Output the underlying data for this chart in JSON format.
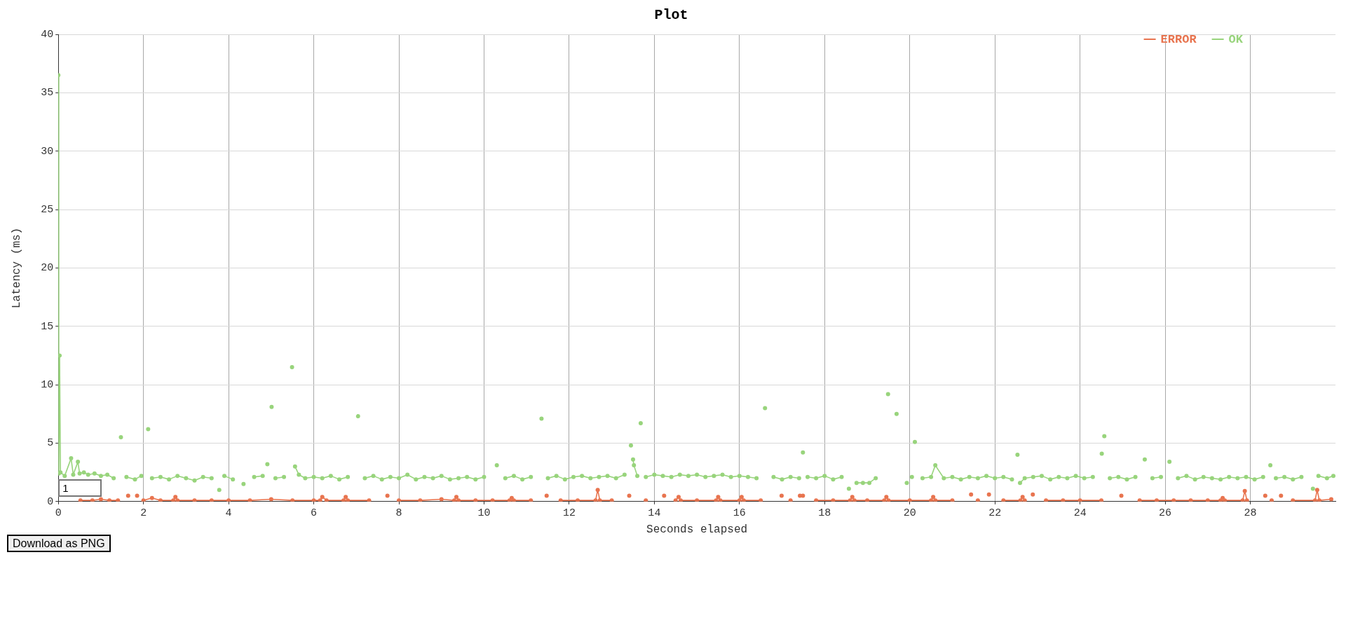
{
  "chart_data": {
    "type": "line",
    "title": "Plot",
    "xlabel": "Seconds elapsed",
    "ylabel": "Latency (ms)",
    "xlim": [
      0,
      30
    ],
    "xticks": [
      0,
      2,
      4,
      6,
      8,
      10,
      12,
      14,
      16,
      18,
      20,
      22,
      24,
      26,
      28
    ],
    "ylim": [
      0,
      40
    ],
    "yticks": [
      0,
      5,
      10,
      15,
      20,
      25,
      30,
      35,
      40
    ],
    "grid": true,
    "legend": "top right",
    "marker": "circle",
    "annotations": [
      "1",
      "Download as PNG"
    ],
    "series": [
      {
        "name": "ERROR",
        "color": "#e8744f",
        "x": [
          0.52,
          0.8,
          1.0,
          1.2,
          1.4,
          1.55,
          1.64,
          1.7,
          1.85,
          1.95,
          2.0,
          2.2,
          2.4,
          2.7,
          2.75,
          2.8,
          3.2,
          3.6,
          4.0,
          4.5,
          5.0,
          5.5,
          6.0,
          6.15,
          6.2,
          6.3,
          6.7,
          6.75,
          6.8,
          7.3,
          7.68,
          7.73,
          7.78,
          8.0,
          8.5,
          9.0,
          9.3,
          9.35,
          9.4,
          9.8,
          10.2,
          10.6,
          10.65,
          10.7,
          11.1,
          11.4,
          11.47,
          11.53,
          11.8,
          12.2,
          12.62,
          12.67,
          12.72,
          13.0,
          13.35,
          13.41,
          13.46,
          13.8,
          14.18,
          14.23,
          14.28,
          14.5,
          14.57,
          14.62,
          15.0,
          15.45,
          15.5,
          15.55,
          16.0,
          16.05,
          16.1,
          16.5,
          16.94,
          16.99,
          17.04,
          17.2,
          17.38,
          17.42,
          17.49,
          17.54,
          17.8,
          18.2,
          18.6,
          18.65,
          18.7,
          19.0,
          19.4,
          19.45,
          19.5,
          20.0,
          20.5,
          20.55,
          20.6,
          21.0,
          21.4,
          21.44,
          21.5,
          21.6,
          21.82,
          21.86,
          21.9,
          22.2,
          22.6,
          22.65,
          22.7,
          22.85,
          22.89,
          22.93,
          23.2,
          23.6,
          24.0,
          24.5,
          24.92,
          24.97,
          25.02,
          25.4,
          25.8,
          26.2,
          26.6,
          27.0,
          27.3,
          27.35,
          27.4,
          27.82,
          27.87,
          27.92,
          28.3,
          28.35,
          28.4,
          28.5,
          28.68,
          28.72,
          28.76,
          29.0,
          29.52,
          29.57,
          29.62,
          29.9
        ],
        "values": [
          0.1,
          0.1,
          0.2,
          0.1,
          0.1,
          null,
          0.5,
          null,
          0.5,
          null,
          0.1,
          0.3,
          0.1,
          0.1,
          0.4,
          0.1,
          0.1,
          0.1,
          0.1,
          0.1,
          0.2,
          0.1,
          0.1,
          0.1,
          0.4,
          0.1,
          0.1,
          0.4,
          0.1,
          0.1,
          null,
          0.5,
          null,
          0.1,
          0.1,
          0.2,
          0.1,
          0.4,
          0.1,
          0.1,
          0.1,
          0.1,
          0.3,
          0.1,
          0.1,
          null,
          0.5,
          null,
          0.1,
          0.1,
          0.1,
          1.0,
          0.1,
          0.1,
          null,
          0.5,
          null,
          0.1,
          null,
          0.5,
          null,
          0.1,
          0.4,
          0.1,
          0.1,
          0.1,
          0.4,
          0.1,
          0.1,
          0.4,
          0.1,
          0.1,
          null,
          0.5,
          null,
          0.1,
          null,
          0.5,
          0.5,
          null,
          0.1,
          0.1,
          0.1,
          0.4,
          0.1,
          0.1,
          0.1,
          0.4,
          0.1,
          0.1,
          0.1,
          0.4,
          0.1,
          0.1,
          null,
          0.6,
          null,
          0.1,
          null,
          0.6,
          null,
          0.1,
          0.1,
          0.4,
          0.1,
          null,
          0.6,
          null,
          0.1,
          0.1,
          0.1,
          0.1,
          null,
          0.5,
          null,
          0.1,
          0.1,
          0.1,
          0.1,
          0.1,
          0.1,
          0.3,
          0.1,
          0.1,
          0.9,
          0.1,
          null,
          0.5,
          null,
          0.1,
          null,
          0.5,
          null,
          0.1,
          0.1,
          1.0,
          0.1,
          0.2
        ]
      },
      {
        "name": "OK",
        "color": "#98d47c",
        "x": [
          0,
          0.01,
          0.03,
          0.05,
          0.15,
          0.3,
          0.35,
          0.46,
          0.5,
          0.6,
          0.7,
          0.85,
          1.0,
          1.15,
          1.3,
          1.4,
          1.47,
          1.55,
          1.6,
          1.8,
          1.95,
          2.05,
          2.11,
          2.15,
          2.2,
          2.4,
          2.6,
          2.8,
          3.0,
          3.2,
          3.4,
          3.6,
          3.7,
          3.78,
          3.83,
          3.9,
          4.1,
          4.2,
          4.35,
          4.5,
          4.6,
          4.8,
          4.87,
          4.91,
          4.96,
          5.01,
          5.05,
          5.1,
          5.3,
          5.4,
          5.49,
          5.52,
          5.56,
          5.65,
          5.8,
          6.0,
          6.2,
          6.4,
          6.6,
          6.8,
          6.95,
          7.04,
          7.1,
          7.2,
          7.4,
          7.6,
          7.8,
          8.0,
          8.2,
          8.4,
          8.6,
          8.8,
          9.0,
          9.2,
          9.4,
          9.6,
          9.8,
          10.0,
          10.2,
          10.3,
          10.4,
          10.5,
          10.7,
          10.9,
          11.1,
          11.25,
          11.35,
          11.45,
          11.5,
          11.7,
          11.9,
          12.1,
          12.3,
          12.5,
          12.7,
          12.9,
          13.1,
          13.3,
          13.4,
          13.45,
          13.48,
          13.5,
          13.52,
          13.6,
          13.64,
          13.68,
          13.72,
          13.8,
          14.0,
          14.2,
          14.4,
          14.6,
          14.8,
          15.0,
          15.2,
          15.4,
          15.6,
          15.8,
          16.0,
          16.2,
          16.4,
          16.5,
          16.6,
          16.7,
          16.8,
          17.0,
          17.2,
          17.4,
          17.45,
          17.49,
          17.53,
          17.6,
          17.8,
          18.0,
          18.2,
          18.4,
          18.5,
          18.57,
          18.65,
          18.75,
          18.9,
          19.05,
          19.2,
          19.3,
          19.49,
          19.55,
          19.69,
          19.8,
          19.93,
          20.0,
          20.05,
          20.08,
          20.12,
          20.2,
          20.3,
          20.5,
          20.6,
          20.8,
          21.0,
          21.2,
          21.4,
          21.6,
          21.8,
          22.0,
          22.2,
          22.4,
          22.48,
          22.53,
          22.56,
          22.59,
          22.7,
          22.9,
          23.1,
          23.3,
          23.5,
          23.7,
          23.9,
          24.1,
          24.3,
          24.45,
          24.51,
          24.54,
          24.57,
          24.62,
          24.7,
          24.9,
          25.1,
          25.3,
          25.45,
          25.52,
          25.6,
          25.7,
          25.9,
          26.03,
          26.1,
          26.15,
          26.3,
          26.5,
          26.7,
          26.9,
          27.1,
          27.3,
          27.5,
          27.7,
          27.9,
          28.1,
          28.3,
          28.4,
          28.47,
          28.55,
          28.6,
          28.8,
          29.0,
          29.2,
          29.4,
          29.47,
          29.52,
          29.6,
          29.8,
          29.95
        ],
        "values": [
          36.5,
          2.4,
          12.5,
          2.5,
          2.2,
          3.7,
          2.3,
          3.4,
          2.4,
          2.5,
          2.3,
          2.4,
          2.2,
          2.3,
          2.0,
          null,
          5.5,
          null,
          2.1,
          1.9,
          2.2,
          null,
          6.2,
          null,
          2.0,
          2.1,
          1.9,
          2.2,
          2.0,
          1.8,
          2.1,
          2.0,
          null,
          1.0,
          null,
          2.2,
          1.9,
          null,
          1.5,
          null,
          2.1,
          2.2,
          null,
          3.2,
          null,
          8.1,
          null,
          2.0,
          2.1,
          null,
          11.5,
          null,
          3.0,
          2.3,
          2.0,
          2.1,
          2.0,
          2.2,
          1.9,
          2.1,
          null,
          7.3,
          null,
          2.0,
          2.2,
          1.9,
          2.1,
          2.0,
          2.3,
          1.9,
          2.1,
          2.0,
          2.2,
          1.9,
          2.0,
          2.1,
          1.9,
          2.1,
          null,
          3.1,
          null,
          2.0,
          2.2,
          1.9,
          2.1,
          null,
          7.1,
          null,
          2.0,
          2.2,
          1.9,
          2.1,
          2.2,
          2.0,
          2.1,
          2.2,
          2.0,
          2.3,
          null,
          4.8,
          null,
          3.6,
          3.1,
          2.2,
          null,
          6.7,
          null,
          2.1,
          2.3,
          2.2,
          2.1,
          2.3,
          2.2,
          2.3,
          2.1,
          2.2,
          2.3,
          2.1,
          2.2,
          2.1,
          2.0,
          null,
          8.0,
          null,
          2.1,
          1.9,
          2.1,
          2.0,
          null,
          4.2,
          null,
          2.1,
          2.0,
          2.2,
          1.9,
          2.1,
          null,
          1.1,
          null,
          1.6,
          1.6,
          1.6,
          2.0,
          null,
          9.2,
          null,
          7.5,
          null,
          1.6,
          null,
          2.1,
          null,
          5.1,
          null,
          2.0,
          2.1,
          3.1,
          2.0,
          2.1,
          1.9,
          2.1,
          2.0,
          2.2,
          2.0,
          2.1,
          1.9,
          null,
          4.0,
          null,
          1.6,
          2.0,
          2.1,
          2.2,
          1.9,
          2.1,
          2.0,
          2.2,
          2.0,
          2.1,
          null,
          4.1,
          null,
          5.6,
          null,
          2.0,
          2.1,
          1.9,
          2.1,
          null,
          3.6,
          null,
          2.0,
          2.1,
          null,
          3.4,
          null,
          2.0,
          2.2,
          1.9,
          2.1,
          2.0,
          1.9,
          2.1,
          2.0,
          2.1,
          1.9,
          2.1,
          null,
          3.1,
          null,
          2.0,
          2.1,
          1.9,
          2.1,
          null,
          1.1,
          null,
          2.2,
          2.0,
          2.2
        ]
      }
    ]
  }
}
